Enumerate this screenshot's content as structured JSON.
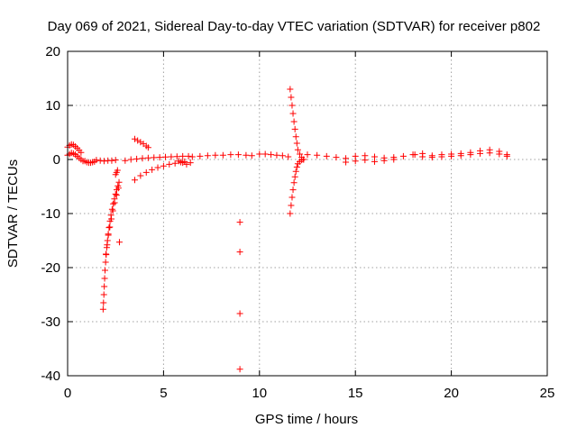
{
  "chart_data": {
    "type": "scatter",
    "title": "Day 069 of 2021, Sidereal Day-to-day VTEC variation (SDTVAR) for receiver p802",
    "xlabel": "GPS time / hours",
    "ylabel": "SDTVAR / TECUs",
    "xlim": [
      0,
      25
    ],
    "ylim": [
      -40,
      20
    ],
    "xticks": [
      0,
      5,
      10,
      15,
      20,
      25
    ],
    "yticks": [
      -40,
      -30,
      -20,
      -10,
      0,
      10,
      20
    ],
    "xtick_labels": [
      "0",
      "5",
      "10",
      "15",
      "20",
      "25"
    ],
    "ytick_labels": [
      "-40",
      "-30",
      "-20",
      "-10",
      "0",
      "10",
      "20"
    ],
    "grid": true,
    "marker": "+",
    "color": "#ff0000",
    "series": [
      {
        "name": "SDTVAR",
        "segments": [
          {
            "x": [
              0.0,
              0.1,
              0.2,
              0.3,
              0.4,
              0.5,
              0.6,
              0.7
            ],
            "y": [
              2.3,
              2.6,
              2.8,
              2.7,
              2.4,
              2.1,
              1.7,
              1.3
            ]
          },
          {
            "x": [
              0.0,
              0.1,
              0.2,
              0.3,
              0.4,
              0.5,
              0.6,
              0.7,
              0.8
            ],
            "y": [
              0.8,
              1.0,
              1.2,
              1.1,
              0.9,
              0.6,
              0.3,
              0.0,
              -0.3
            ]
          },
          {
            "x": [
              0.9,
              1.0,
              1.1,
              1.2,
              1.3,
              1.4
            ],
            "y": [
              -0.3,
              -0.5,
              -0.6,
              -0.6,
              -0.5,
              -0.4
            ]
          },
          {
            "x": [
              1.5,
              1.7,
              1.9,
              2.1,
              2.3,
              2.5
            ],
            "y": [
              -0.1,
              -0.2,
              -0.3,
              -0.2,
              -0.2,
              -0.1
            ]
          },
          {
            "x": [
              1.85,
              1.87,
              1.89,
              1.91,
              1.93,
              1.95,
              1.98,
              2.01,
              2.04,
              2.08,
              2.12,
              2.16,
              2.21,
              2.26,
              2.32,
              2.38,
              2.44,
              2.5,
              2.56,
              2.62,
              2.68
            ],
            "y": [
              -27.7,
              -26.5,
              -25.0,
              -23.5,
              -22.0,
              -20.5,
              -19.0,
              -17.6,
              -16.3,
              -15.0,
              -13.8,
              -12.6,
              -11.4,
              -10.3,
              -9.2,
              -8.2,
              -7.3,
              -6.4,
              -5.6,
              -4.9,
              -4.2
            ]
          },
          {
            "x": [
              2.0,
              2.06,
              2.12,
              2.2,
              2.28,
              2.36,
              2.45,
              2.55,
              2.65
            ],
            "y": [
              -17.5,
              -15.8,
              -14.0,
              -12.5,
              -11.0,
              -9.5,
              -8.0,
              -6.6,
              -5.3
            ]
          },
          {
            "x": [
              2.5,
              2.55,
              2.6
            ],
            "y": [
              -2.8,
              -2.4,
              -2.0
            ]
          },
          {
            "x": [
              2.7
            ],
            "y": [
              -15.3
            ]
          },
          {
            "x": [
              3.0,
              3.3,
              3.6,
              3.9,
              4.2,
              4.5,
              4.8,
              5.1,
              5.4,
              5.7,
              6.0,
              6.3
            ],
            "y": [
              -0.2,
              0.0,
              0.1,
              0.2,
              0.3,
              0.35,
              0.4,
              0.45,
              0.5,
              0.55,
              0.6,
              0.6
            ]
          },
          {
            "x": [
              3.5,
              3.65,
              3.8,
              3.95,
              4.1,
              4.2
            ],
            "y": [
              3.8,
              3.5,
              3.2,
              2.9,
              2.5,
              2.2
            ]
          },
          {
            "x": [
              3.5,
              3.8,
              4.1,
              4.4,
              4.7,
              5.0,
              5.3,
              5.6,
              5.9,
              6.1
            ],
            "y": [
              -3.8,
              -3.0,
              -2.4,
              -1.9,
              -1.5,
              -1.2,
              -0.9,
              -0.7,
              -0.5,
              -0.4
            ]
          },
          {
            "x": [
              5.8,
              6.0,
              6.2,
              6.4
            ],
            "y": [
              -0.3,
              -0.6,
              -0.9,
              -0.6
            ]
          },
          {
            "x": [
              6.5,
              6.9,
              7.3,
              7.7,
              8.1,
              8.5,
              8.9,
              9.3,
              9.6
            ],
            "y": [
              0.5,
              0.6,
              0.7,
              0.8,
              0.8,
              0.9,
              0.9,
              0.8,
              0.7
            ]
          },
          {
            "x": [
              8.98
            ],
            "y": [
              -11.6
            ]
          },
          {
            "x": [
              8.98
            ],
            "y": [
              -17.1
            ]
          },
          {
            "x": [
              8.98
            ],
            "y": [
              -28.5
            ]
          },
          {
            "x": [
              8.98
            ],
            "y": [
              -38.8
            ]
          },
          {
            "x": [
              10.0,
              10.3,
              10.6,
              10.9,
              11.2,
              11.5
            ],
            "y": [
              1.0,
              1.0,
              0.9,
              0.8,
              0.7,
              0.5
            ]
          },
          {
            "x": [
              11.6,
              11.65,
              11.7,
              11.75,
              11.8,
              11.85,
              11.9,
              11.95,
              12.0,
              12.1,
              12.2,
              12.3
            ],
            "y": [
              13.0,
              11.5,
              10.0,
              8.5,
              7.0,
              5.6,
              4.2,
              3.0,
              1.8,
              1.0,
              0.4,
              0.0
            ]
          },
          {
            "x": [
              11.6,
              11.65,
              11.7,
              11.75,
              11.8,
              11.85,
              11.9,
              11.95,
              12.0,
              12.1,
              12.2,
              12.3
            ],
            "y": [
              -10.0,
              -8.5,
              -7.0,
              -5.6,
              -4.3,
              -3.2,
              -2.2,
              -1.4,
              -0.8,
              -0.4,
              -0.1,
              0.0
            ]
          },
          {
            "x": [
              12.5,
              13.0,
              13.5,
              14.0,
              14.5,
              15.0,
              15.5,
              16.0,
              16.5,
              17.0,
              17.5,
              18.0
            ],
            "y": [
              0.9,
              0.8,
              0.6,
              0.4,
              0.2,
              0.6,
              0.7,
              0.5,
              0.3,
              0.4,
              0.6,
              0.9
            ]
          },
          {
            "x": [
              14.5,
              15.0,
              15.5,
              16.0,
              16.5,
              17.0
            ],
            "y": [
              -0.5,
              -0.3,
              -0.1,
              -0.4,
              -0.2,
              0.0
            ]
          },
          {
            "x": [
              18.1,
              18.5,
              19.0,
              19.5,
              20.0,
              20.5,
              21.0,
              21.5,
              22.0,
              22.5,
              22.9
            ],
            "y": [
              0.9,
              1.1,
              0.7,
              0.9,
              1.0,
              1.1,
              1.3,
              1.6,
              1.8,
              1.5,
              0.9
            ]
          },
          {
            "x": [
              18.5,
              19.0,
              19.5,
              20.0,
              20.5,
              21.0,
              21.5,
              22.0,
              22.5,
              22.9
            ],
            "y": [
              0.5,
              0.4,
              0.5,
              0.6,
              0.7,
              0.9,
              1.1,
              1.2,
              1.0,
              0.6
            ]
          }
        ]
      }
    ]
  }
}
